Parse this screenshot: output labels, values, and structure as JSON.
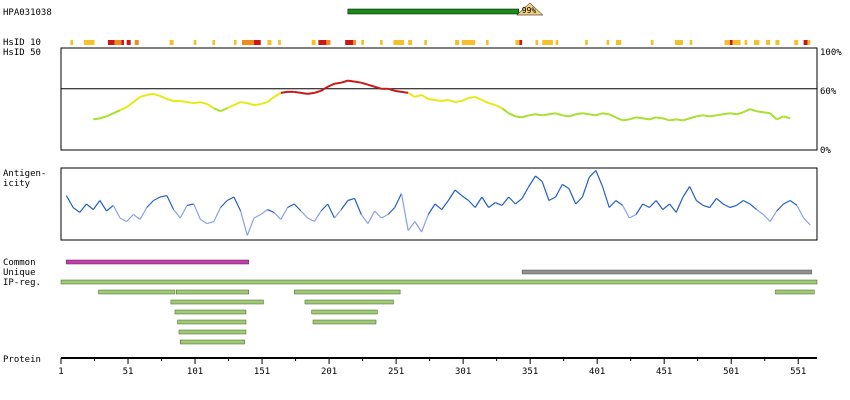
{
  "title": "HPA031038",
  "chart_data": {
    "type": "line",
    "protein_length": 565,
    "antigen": {
      "start": 215,
      "end": 350,
      "identity_label": "99%"
    },
    "labels": {
      "hsid10": "HsID 10",
      "hsid50": "HsID 50",
      "antigenicity_line1": "Antigen-",
      "antigenicity_line2": "icity",
      "common": "Common",
      "unique": "Unique",
      "ipreg": "IP-reg.",
      "protein": "Protein"
    },
    "identity_axis": {
      "ticks": [
        "100%",
        "60%",
        "0%"
      ],
      "threshold": 60,
      "ylim": [
        0,
        100
      ]
    },
    "xaxis_ticks": [
      1,
      51,
      101,
      151,
      201,
      251,
      301,
      351,
      401,
      451,
      501,
      551
    ],
    "hsid10_marks": [
      {
        "start": 8,
        "end": 10,
        "level": "low"
      },
      {
        "start": 18,
        "end": 26,
        "level": "low"
      },
      {
        "start": 36,
        "end": 41,
        "level": "high"
      },
      {
        "start": 41,
        "end": 46,
        "level": "mid"
      },
      {
        "start": 46,
        "end": 48,
        "level": "high"
      },
      {
        "start": 50,
        "end": 53,
        "level": "high"
      },
      {
        "start": 56,
        "end": 59,
        "level": "mid"
      },
      {
        "start": 82,
        "end": 85,
        "level": "low"
      },
      {
        "start": 100,
        "end": 102,
        "level": "low"
      },
      {
        "start": 114,
        "end": 116,
        "level": "low"
      },
      {
        "start": 130,
        "end": 132,
        "level": "low"
      },
      {
        "start": 136,
        "end": 145,
        "level": "mid"
      },
      {
        "start": 145,
        "end": 150,
        "level": "high"
      },
      {
        "start": 155,
        "end": 158,
        "level": "low"
      },
      {
        "start": 163,
        "end": 165,
        "level": "low"
      },
      {
        "start": 188,
        "end": 191,
        "level": "low"
      },
      {
        "start": 193,
        "end": 199,
        "level": "high"
      },
      {
        "start": 199,
        "end": 202,
        "level": "mid"
      },
      {
        "start": 213,
        "end": 219,
        "level": "high"
      },
      {
        "start": 219,
        "end": 221,
        "level": "mid"
      },
      {
        "start": 225,
        "end": 227,
        "level": "low"
      },
      {
        "start": 239,
        "end": 241,
        "level": "low"
      },
      {
        "start": 249,
        "end": 257,
        "level": "low"
      },
      {
        "start": 260,
        "end": 263,
        "level": "low"
      },
      {
        "start": 272,
        "end": 274,
        "level": "low"
      },
      {
        "start": 295,
        "end": 298,
        "level": "low"
      },
      {
        "start": 300,
        "end": 310,
        "level": "low"
      },
      {
        "start": 318,
        "end": 320,
        "level": "low"
      },
      {
        "start": 340,
        "end": 343,
        "level": "low"
      },
      {
        "start": 343,
        "end": 345,
        "level": "high"
      },
      {
        "start": 355,
        "end": 357,
        "level": "low"
      },
      {
        "start": 360,
        "end": 368,
        "level": "low"
      },
      {
        "start": 370,
        "end": 372,
        "level": "low"
      },
      {
        "start": 392,
        "end": 394,
        "level": "low"
      },
      {
        "start": 408,
        "end": 410,
        "level": "low"
      },
      {
        "start": 415,
        "end": 419,
        "level": "low"
      },
      {
        "start": 441,
        "end": 443,
        "level": "low"
      },
      {
        "start": 459,
        "end": 465,
        "level": "low"
      },
      {
        "start": 470,
        "end": 472,
        "level": "low"
      },
      {
        "start": 496,
        "end": 500,
        "level": "low"
      },
      {
        "start": 500,
        "end": 502,
        "level": "high"
      },
      {
        "start": 502,
        "end": 508,
        "level": "low"
      },
      {
        "start": 511,
        "end": 513,
        "level": "low"
      },
      {
        "start": 518,
        "end": 522,
        "level": "low"
      },
      {
        "start": 527,
        "end": 530,
        "level": "low"
      },
      {
        "start": 534,
        "end": 537,
        "level": "low"
      },
      {
        "start": 548,
        "end": 551,
        "level": "low"
      },
      {
        "start": 555,
        "end": 558,
        "level": "high"
      },
      {
        "start": 558,
        "end": 560,
        "level": "low"
      }
    ],
    "identity_profile": [
      [
        25,
        30
      ],
      [
        30,
        31
      ],
      [
        35,
        33
      ],
      [
        40,
        36
      ],
      [
        45,
        39
      ],
      [
        50,
        42
      ],
      [
        55,
        47
      ],
      [
        60,
        52
      ],
      [
        65,
        54
      ],
      [
        70,
        55
      ],
      [
        75,
        53
      ],
      [
        80,
        50
      ],
      [
        85,
        48
      ],
      [
        90,
        48
      ],
      [
        95,
        47
      ],
      [
        100,
        46
      ],
      [
        105,
        47
      ],
      [
        110,
        45
      ],
      [
        115,
        41
      ],
      [
        120,
        38
      ],
      [
        125,
        41
      ],
      [
        130,
        44
      ],
      [
        135,
        47
      ],
      [
        140,
        46
      ],
      [
        145,
        44
      ],
      [
        150,
        45
      ],
      [
        155,
        47
      ],
      [
        160,
        52
      ],
      [
        165,
        56
      ],
      [
        170,
        57
      ],
      [
        175,
        57
      ],
      [
        180,
        56
      ],
      [
        185,
        55
      ],
      [
        190,
        56
      ],
      [
        195,
        58
      ],
      [
        200,
        62
      ],
      [
        205,
        65
      ],
      [
        210,
        66
      ],
      [
        215,
        68
      ],
      [
        220,
        67
      ],
      [
        225,
        66
      ],
      [
        230,
        64
      ],
      [
        235,
        62
      ],
      [
        240,
        60
      ],
      [
        245,
        60
      ],
      [
        250,
        58
      ],
      [
        255,
        57
      ],
      [
        260,
        56
      ],
      [
        265,
        52
      ],
      [
        270,
        54
      ],
      [
        275,
        50
      ],
      [
        280,
        49
      ],
      [
        285,
        48
      ],
      [
        290,
        49
      ],
      [
        295,
        47
      ],
      [
        300,
        48
      ],
      [
        305,
        51
      ],
      [
        310,
        52
      ],
      [
        315,
        49
      ],
      [
        320,
        46
      ],
      [
        325,
        44
      ],
      [
        330,
        41
      ],
      [
        335,
        36
      ],
      [
        340,
        33
      ],
      [
        345,
        32
      ],
      [
        350,
        34
      ],
      [
        355,
        35
      ],
      [
        360,
        34
      ],
      [
        365,
        35
      ],
      [
        370,
        36
      ],
      [
        375,
        34
      ],
      [
        380,
        33
      ],
      [
        385,
        35
      ],
      [
        390,
        36
      ],
      [
        395,
        35
      ],
      [
        400,
        34
      ],
      [
        405,
        36
      ],
      [
        410,
        35
      ],
      [
        415,
        32
      ],
      [
        420,
        29
      ],
      [
        425,
        30
      ],
      [
        430,
        32
      ],
      [
        435,
        31
      ],
      [
        440,
        30
      ],
      [
        445,
        32
      ],
      [
        450,
        31
      ],
      [
        455,
        29
      ],
      [
        460,
        30
      ],
      [
        465,
        29
      ],
      [
        470,
        31
      ],
      [
        475,
        33
      ],
      [
        480,
        34
      ],
      [
        485,
        33
      ],
      [
        490,
        34
      ],
      [
        495,
        35
      ],
      [
        500,
        36
      ],
      [
        505,
        35
      ],
      [
        510,
        37
      ],
      [
        515,
        40
      ],
      [
        520,
        38
      ],
      [
        525,
        37
      ],
      [
        530,
        36
      ],
      [
        535,
        30
      ],
      [
        540,
        33
      ],
      [
        545,
        31
      ]
    ],
    "antigenicity_profile": [
      [
        5,
        0.62
      ],
      [
        10,
        0.45
      ],
      [
        15,
        0.38
      ],
      [
        20,
        0.5
      ],
      [
        25,
        0.42
      ],
      [
        30,
        0.55
      ],
      [
        35,
        0.4
      ],
      [
        40,
        0.48
      ],
      [
        45,
        0.3
      ],
      [
        50,
        0.25
      ],
      [
        55,
        0.35
      ],
      [
        60,
        0.28
      ],
      [
        65,
        0.45
      ],
      [
        70,
        0.55
      ],
      [
        75,
        0.6
      ],
      [
        80,
        0.62
      ],
      [
        85,
        0.42
      ],
      [
        90,
        0.3
      ],
      [
        95,
        0.48
      ],
      [
        100,
        0.5
      ],
      [
        105,
        0.28
      ],
      [
        110,
        0.22
      ],
      [
        115,
        0.25
      ],
      [
        120,
        0.45
      ],
      [
        125,
        0.55
      ],
      [
        130,
        0.6
      ],
      [
        135,
        0.4
      ],
      [
        140,
        0.05
      ],
      [
        145,
        0.3
      ],
      [
        150,
        0.35
      ],
      [
        155,
        0.42
      ],
      [
        160,
        0.38
      ],
      [
        165,
        0.28
      ],
      [
        170,
        0.45
      ],
      [
        175,
        0.5
      ],
      [
        180,
        0.4
      ],
      [
        185,
        0.3
      ],
      [
        190,
        0.25
      ],
      [
        195,
        0.4
      ],
      [
        200,
        0.5
      ],
      [
        205,
        0.3
      ],
      [
        210,
        0.42
      ],
      [
        215,
        0.55
      ],
      [
        220,
        0.58
      ],
      [
        225,
        0.35
      ],
      [
        230,
        0.22
      ],
      [
        235,
        0.4
      ],
      [
        240,
        0.3
      ],
      [
        245,
        0.35
      ],
      [
        250,
        0.45
      ],
      [
        255,
        0.65
      ],
      [
        260,
        0.12
      ],
      [
        265,
        0.25
      ],
      [
        270,
        0.1
      ],
      [
        275,
        0.35
      ],
      [
        280,
        0.5
      ],
      [
        285,
        0.42
      ],
      [
        290,
        0.55
      ],
      [
        295,
        0.7
      ],
      [
        300,
        0.62
      ],
      [
        305,
        0.55
      ],
      [
        310,
        0.45
      ],
      [
        315,
        0.6
      ],
      [
        320,
        0.45
      ],
      [
        325,
        0.52
      ],
      [
        330,
        0.48
      ],
      [
        335,
        0.6
      ],
      [
        340,
        0.5
      ],
      [
        345,
        0.58
      ],
      [
        350,
        0.75
      ],
      [
        355,
        0.9
      ],
      [
        360,
        0.82
      ],
      [
        365,
        0.55
      ],
      [
        370,
        0.6
      ],
      [
        375,
        0.78
      ],
      [
        380,
        0.72
      ],
      [
        385,
        0.5
      ],
      [
        390,
        0.6
      ],
      [
        395,
        0.88
      ],
      [
        400,
        0.98
      ],
      [
        405,
        0.75
      ],
      [
        410,
        0.45
      ],
      [
        415,
        0.55
      ],
      [
        420,
        0.48
      ],
      [
        425,
        0.3
      ],
      [
        430,
        0.35
      ],
      [
        435,
        0.5
      ],
      [
        440,
        0.45
      ],
      [
        445,
        0.55
      ],
      [
        450,
        0.42
      ],
      [
        455,
        0.5
      ],
      [
        460,
        0.38
      ],
      [
        465,
        0.6
      ],
      [
        470,
        0.75
      ],
      [
        475,
        0.55
      ],
      [
        480,
        0.48
      ],
      [
        485,
        0.45
      ],
      [
        490,
        0.58
      ],
      [
        495,
        0.5
      ],
      [
        500,
        0.45
      ],
      [
        505,
        0.48
      ],
      [
        510,
        0.55
      ],
      [
        515,
        0.5
      ],
      [
        520,
        0.42
      ],
      [
        525,
        0.35
      ],
      [
        530,
        0.25
      ],
      [
        535,
        0.4
      ],
      [
        540,
        0.5
      ],
      [
        545,
        0.55
      ],
      [
        550,
        0.48
      ],
      [
        555,
        0.3
      ],
      [
        560,
        0.2
      ]
    ],
    "common_region": {
      "start": 5,
      "end": 141
    },
    "unique_region": {
      "start": 345,
      "end": 561
    },
    "ipreg_full": {
      "start": 1,
      "end": 565
    },
    "ipreg_fragments": [
      {
        "start": 29,
        "end": 86,
        "row": 0
      },
      {
        "start": 87,
        "end": 141,
        "row": 0
      },
      {
        "start": 175,
        "end": 254,
        "row": 0
      },
      {
        "start": 534,
        "end": 563,
        "row": 0
      },
      {
        "start": 83,
        "end": 152,
        "row": 1
      },
      {
        "start": 183,
        "end": 249,
        "row": 1
      },
      {
        "start": 86,
        "end": 139,
        "row": 2
      },
      {
        "start": 188,
        "end": 237,
        "row": 2
      },
      {
        "start": 88,
        "end": 139,
        "row": 3
      },
      {
        "start": 189,
        "end": 236,
        "row": 3
      },
      {
        "start": 89,
        "end": 139,
        "row": 4
      },
      {
        "start": 90,
        "end": 138,
        "row": 5
      }
    ],
    "colors": {
      "antigen_bar": "#1a8a1a",
      "antigen_marker": "#f0d080",
      "hsid_low": "#f5c02a",
      "hsid_mid": "#f08a1a",
      "hsid_high": "#c81818",
      "identity_high": "#c81818",
      "identity_mid": "#e8e818",
      "identity_low": "#a8e030",
      "antigenicity_dark": "#2260c0",
      "antigenicity_light": "#8aa0e8",
      "common": "#c040a8",
      "unique": "#909090",
      "ipreg": "#a0c878",
      "ipreg_border": "#406020"
    }
  }
}
